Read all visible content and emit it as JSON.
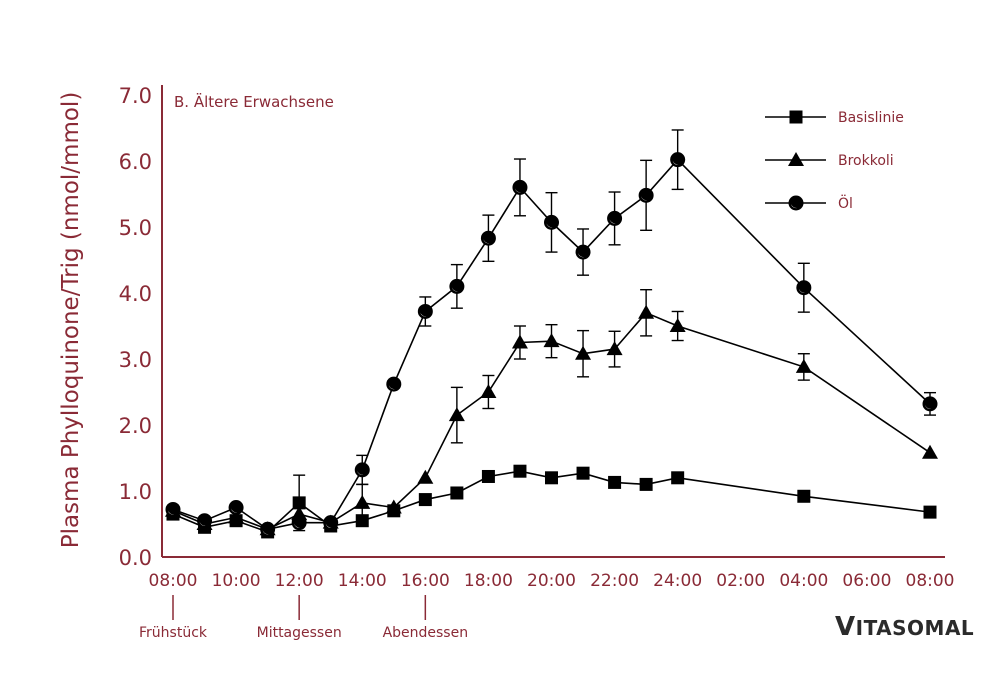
{
  "chart_data": {
    "type": "line",
    "title": "B. Ältere Erwachsene",
    "ylabel": "Plasma Phylloquinone/Trig (nmol/mmol)",
    "xlabel": "",
    "ylim": [
      0,
      7
    ],
    "yticks": [
      "0.0",
      "1.0",
      "2.0",
      "3.0",
      "4.0",
      "5.0",
      "6.0",
      "7.0"
    ],
    "xticks": [
      "08:00",
      "10:00",
      "12:00",
      "14:00",
      "16:00",
      "18:00",
      "20:00",
      "22:00",
      "24:00",
      "02:00",
      "04:00",
      "06:00",
      "08:00"
    ],
    "xlim_hours": [
      0,
      24
    ],
    "meals": [
      {
        "label": "Frühstück",
        "hour": 0
      },
      {
        "label": "Mittagessen",
        "hour": 4
      },
      {
        "label": "Abendessen",
        "hour": 8
      }
    ],
    "series": [
      {
        "name": "Basislinie",
        "marker": "square",
        "x": [
          0,
          1,
          2,
          3,
          4,
          5,
          6,
          7,
          8,
          9,
          10,
          11,
          12,
          13,
          14,
          15,
          16,
          20,
          24
        ],
        "values": [
          0.65,
          0.45,
          0.55,
          0.38,
          0.82,
          0.47,
          0.55,
          0.7,
          0.87,
          0.97,
          1.22,
          1.3,
          1.2,
          1.27,
          1.13,
          1.1,
          1.2,
          0.92,
          0.68
        ],
        "errors": [
          0.05,
          0.05,
          0.05,
          0.05,
          0.42,
          0.05,
          0.05,
          0.05,
          0.05,
          0.05,
          0.05,
          0.05,
          0.05,
          0.05,
          0.05,
          0.05,
          0.05,
          0.05,
          0.05
        ]
      },
      {
        "name": "Brokkoli",
        "marker": "triangle",
        "x": [
          0,
          1,
          2,
          3,
          4,
          5,
          6,
          7,
          8,
          9,
          10,
          11,
          12,
          13,
          14,
          15,
          16,
          20,
          24
        ],
        "values": [
          0.7,
          0.5,
          0.6,
          0.42,
          0.65,
          0.52,
          0.82,
          0.75,
          1.2,
          2.15,
          2.5,
          3.25,
          3.27,
          3.08,
          3.15,
          3.7,
          3.5,
          2.88,
          1.58
        ],
        "errors": [
          0.05,
          0.05,
          0.05,
          0.05,
          0.05,
          0.05,
          0.28,
          0.05,
          0.05,
          0.42,
          0.25,
          0.25,
          0.25,
          0.35,
          0.27,
          0.35,
          0.22,
          0.2,
          0.05
        ]
      },
      {
        "name": "Öl",
        "marker": "circle",
        "x": [
          0,
          1,
          2,
          3,
          4,
          5,
          6,
          7,
          8,
          9,
          10,
          11,
          12,
          13,
          14,
          15,
          16,
          20,
          24
        ],
        "values": [
          0.72,
          0.55,
          0.75,
          0.42,
          0.52,
          0.52,
          1.32,
          2.62,
          3.72,
          4.1,
          4.83,
          5.6,
          5.07,
          4.62,
          5.13,
          5.48,
          6.02,
          4.08,
          2.32
        ],
        "errors": [
          0.05,
          0.05,
          0.05,
          0.05,
          0.05,
          0.05,
          0.22,
          0.05,
          0.22,
          0.33,
          0.35,
          0.43,
          0.45,
          0.35,
          0.4,
          0.53,
          0.45,
          0.37,
          0.17
        ]
      }
    ]
  },
  "brand": {
    "first": "V",
    "rest": "ITASOMAL"
  },
  "colors": {
    "axis": "#8a2a36",
    "ink": "#000000",
    "brand": "#2b2b2b"
  }
}
